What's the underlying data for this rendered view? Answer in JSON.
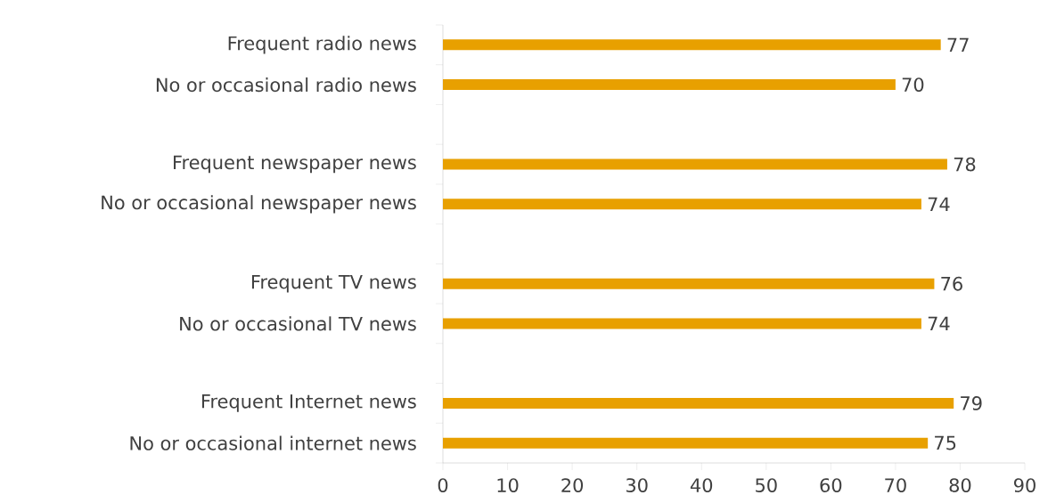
{
  "chart_data": {
    "type": "bar",
    "orientation": "horizontal",
    "categories": [
      "Frequent radio news",
      "No or occasional radio news",
      null,
      "Frequent newspaper news",
      "No or occasional newspaper news",
      null,
      "Frequent TV news",
      "No or occasional TV news",
      null,
      "Frequent Internet news",
      "No or occasional internet news"
    ],
    "values": [
      77,
      70,
      null,
      78,
      74,
      null,
      76,
      74,
      null,
      79,
      75
    ],
    "color": "#e8a000",
    "data_labels": true,
    "xlim": [
      0,
      90
    ],
    "xticks": [
      0,
      10,
      20,
      30,
      40,
      50,
      60,
      70,
      80,
      90
    ],
    "grid": false
  }
}
